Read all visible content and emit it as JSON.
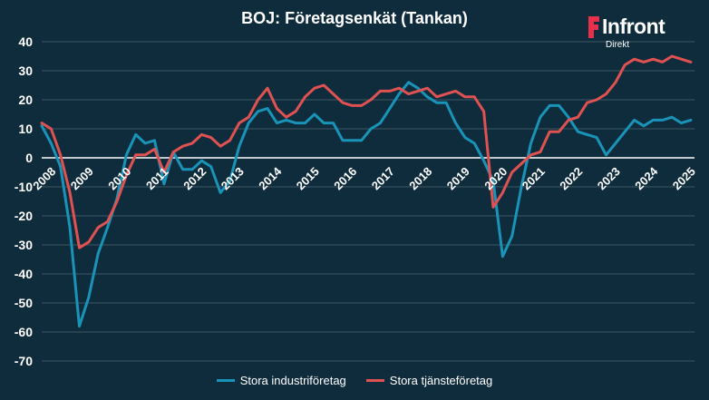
{
  "title": "BOJ: Företagsenkät (Tankan)",
  "logo": {
    "name": "Infront",
    "sub": "Direkt",
    "color": "#e8304a"
  },
  "colors": {
    "background": "#0f2c3c",
    "grid": "#3d5866",
    "zero_line": "#ffffff",
    "text": "#ffffff"
  },
  "chart_data": {
    "type": "line",
    "title": "BOJ: Företagsenkät (Tankan)",
    "xlim": [
      2008.0,
      2025.35
    ],
    "ylim": [
      -70,
      40
    ],
    "y_ticks": [
      40,
      30,
      20,
      10,
      0,
      -10,
      -20,
      -30,
      -40,
      -50,
      -60,
      -70
    ],
    "x_ticks": [
      "2008",
      "2009",
      "2010",
      "2011",
      "2012",
      "2013",
      "2014",
      "2015",
      "2016",
      "2017",
      "2018",
      "2019",
      "2020",
      "2021",
      "2022",
      "2023",
      "2024",
      "2025"
    ],
    "grid": true,
    "legend": "bottom",
    "series": [
      {
        "name": "Stora industriföretag",
        "color": "#1a93b8",
        "x": [
          2008.0,
          2008.25,
          2008.5,
          2008.75,
          2009.0,
          2009.25,
          2009.5,
          2009.75,
          2010.0,
          2010.25,
          2010.5,
          2010.75,
          2011.0,
          2011.25,
          2011.5,
          2011.75,
          2012.0,
          2012.25,
          2012.5,
          2012.75,
          2013.0,
          2013.25,
          2013.5,
          2013.75,
          2014.0,
          2014.25,
          2014.5,
          2014.75,
          2015.0,
          2015.25,
          2015.5,
          2015.75,
          2016.0,
          2016.25,
          2016.5,
          2016.75,
          2017.0,
          2017.25,
          2017.5,
          2017.75,
          2018.0,
          2018.25,
          2018.5,
          2018.75,
          2019.0,
          2019.25,
          2019.5,
          2019.75,
          2020.0,
          2020.25,
          2020.5,
          2020.75,
          2021.0,
          2021.25,
          2021.5,
          2021.75,
          2022.0,
          2022.25,
          2022.5,
          2022.75,
          2023.0,
          2023.25,
          2023.5,
          2023.75,
          2024.0,
          2024.25,
          2024.5,
          2024.75,
          2025.0,
          2025.25
        ],
        "values": [
          11,
          5,
          -3,
          -24,
          -58,
          -48,
          -33,
          -24,
          -14,
          1,
          8,
          5,
          6,
          -9,
          2,
          -4,
          -4,
          -1,
          -3,
          -12,
          -8,
          4,
          12,
          16,
          17,
          12,
          13,
          12,
          12,
          15,
          12,
          12,
          6,
          6,
          6,
          10,
          12,
          17,
          22,
          26,
          24,
          21,
          19,
          19,
          12,
          7,
          5,
          -1,
          -8,
          -34,
          -27,
          -10,
          5,
          14,
          18,
          18,
          14,
          9,
          8,
          7,
          1,
          5,
          9,
          13,
          11,
          13,
          13,
          14,
          12,
          13
        ]
      },
      {
        "name": "Stora tjänsteföretag",
        "color": "#e05252",
        "x": [
          2008.0,
          2008.25,
          2008.5,
          2008.75,
          2009.0,
          2009.25,
          2009.5,
          2009.75,
          2010.0,
          2010.25,
          2010.5,
          2010.75,
          2011.0,
          2011.25,
          2011.5,
          2011.75,
          2012.0,
          2012.25,
          2012.5,
          2012.75,
          2013.0,
          2013.25,
          2013.5,
          2013.75,
          2014.0,
          2014.25,
          2014.5,
          2014.75,
          2015.0,
          2015.25,
          2015.5,
          2015.75,
          2016.0,
          2016.25,
          2016.5,
          2016.75,
          2017.0,
          2017.25,
          2017.5,
          2017.75,
          2018.0,
          2018.25,
          2018.5,
          2018.75,
          2019.0,
          2019.25,
          2019.5,
          2019.75,
          2020.0,
          2020.25,
          2020.5,
          2020.75,
          2021.0,
          2021.25,
          2021.5,
          2021.75,
          2022.0,
          2022.25,
          2022.5,
          2022.75,
          2023.0,
          2023.25,
          2023.5,
          2023.75,
          2024.0,
          2024.25,
          2024.5,
          2024.75,
          2025.0,
          2025.25
        ],
        "values": [
          12,
          10,
          1,
          -12,
          -31,
          -29,
          -24,
          -22,
          -15,
          -6,
          1,
          1,
          3,
          -5,
          2,
          4,
          5,
          8,
          7,
          4,
          6,
          12,
          14,
          20,
          24,
          17,
          14,
          16,
          21,
          24,
          25,
          22,
          19,
          18,
          18,
          20,
          23,
          23,
          24,
          22,
          23,
          24,
          21,
          22,
          23,
          21,
          21,
          16,
          -17,
          -12,
          -5,
          -2,
          1,
          2,
          9,
          9,
          13,
          14,
          19,
          20,
          22,
          26,
          32,
          34,
          33,
          34,
          33,
          35,
          34,
          33
        ]
      }
    ]
  }
}
